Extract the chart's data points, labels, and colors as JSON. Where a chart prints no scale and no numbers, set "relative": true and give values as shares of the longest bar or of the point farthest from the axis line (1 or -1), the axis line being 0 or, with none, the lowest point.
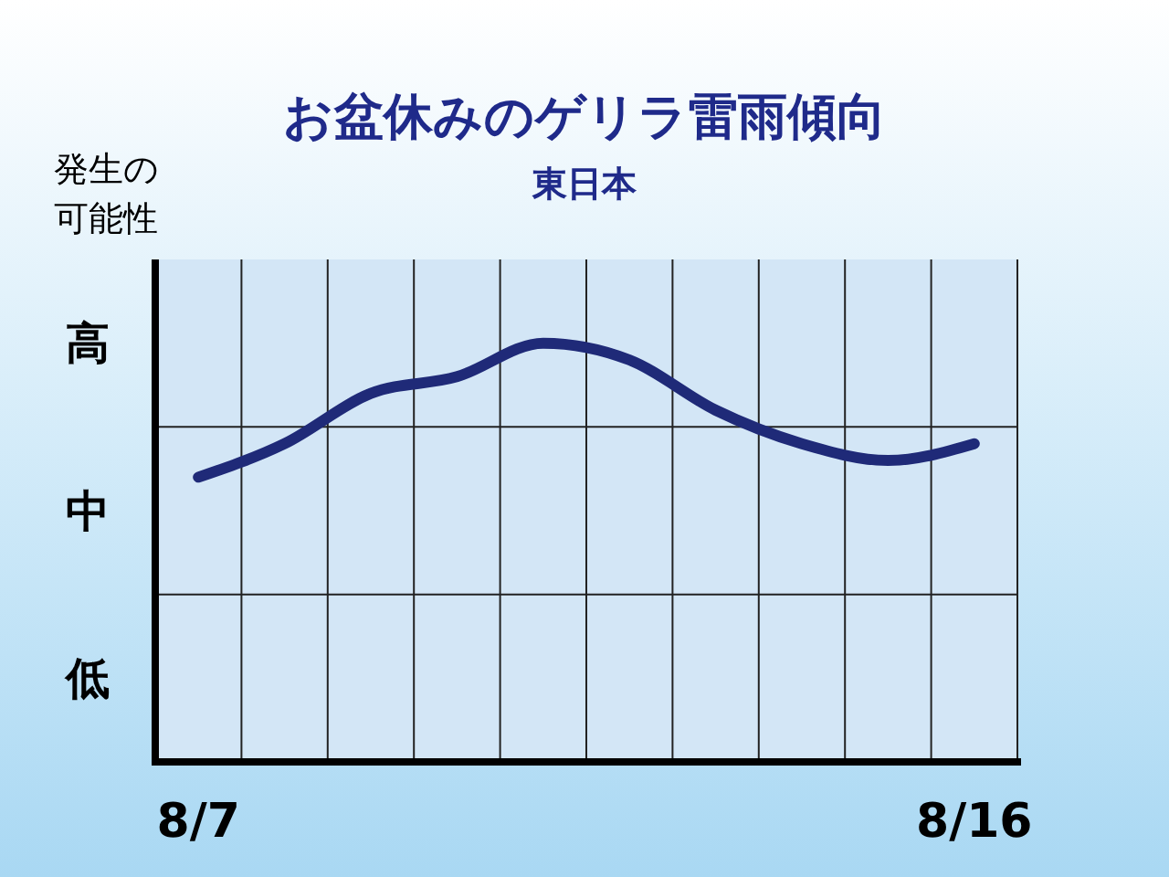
{
  "chart_data": {
    "type": "line",
    "title": "お盆休みのゲリラ雷雨傾向",
    "subtitle": "東日本",
    "ylabel": "発生の可能性",
    "categories": [
      "8/7",
      null,
      null,
      null,
      null,
      null,
      null,
      null,
      null,
      "8/16"
    ],
    "series": [
      {
        "color": "#1f2a78",
        "values": [
          0.68,
          0.76,
          0.88,
          0.92,
          1,
          0.96,
          0.84,
          0.76,
          0.72,
          0.76
        ]
      }
    ],
    "relative": true,
    "annotations": [
      "高",
      "中",
      "低"
    ],
    "grid": true,
    "marker": "none",
    "line_style": "solid"
  }
}
